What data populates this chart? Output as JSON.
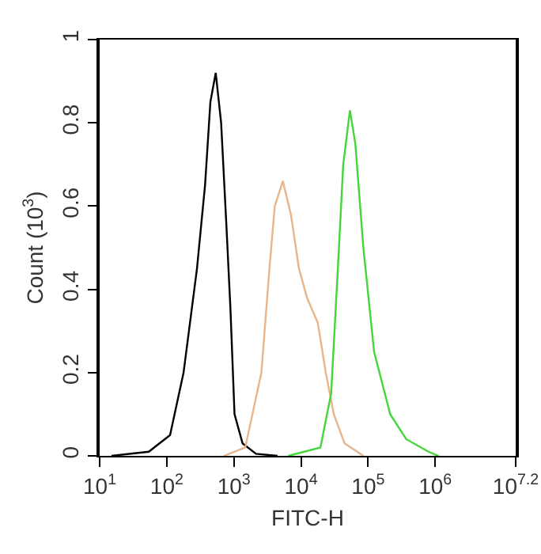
{
  "chart_data": {
    "type": "line",
    "xlabel": "FITC-H",
    "ylabel": "Count (10$^{3}$)",
    "log": "x",
    "grid": false,
    "marker": "none",
    "line_style": "solid",
    "xlim": [
      10,
      15848932
    ],
    "xticks": [
      {
        "value": 10,
        "label": "10$^{1}$"
      },
      {
        "value": 100,
        "label": "10$^{2}$"
      },
      {
        "value": 1000,
        "label": "10$^{3}$"
      },
      {
        "value": 10000,
        "label": "10$^{4}$"
      },
      {
        "value": 100000,
        "label": "10$^{5}$"
      },
      {
        "value": 1000000,
        "label": "10$^{6}$"
      },
      {
        "value": 15848932,
        "label": "10$^{7.2}$"
      }
    ],
    "ylim": [
      0,
      1
    ],
    "yticks": [
      0,
      0.2,
      0.4,
      0.6,
      0.8,
      1
    ],
    "series": [
      {
        "color": "#000000",
        "x": [
          15,
          54,
          112,
          178,
          282,
          372,
          447,
          537,
          646,
          776,
          891,
          1023,
          1349,
          2138,
          4467
        ],
        "values": [
          0,
          0.01,
          0.05,
          0.2,
          0.45,
          0.65,
          0.85,
          0.92,
          0.8,
          0.55,
          0.35,
          0.1,
          0.03,
          0.005,
          0
        ]
      },
      {
        "color": "#e8b58a",
        "x": [
          708,
          1479,
          2570,
          3388,
          4074,
          5370,
          7079,
          9333,
          12300,
          17780,
          23440,
          30900,
          44670,
          85110
        ],
        "values": [
          0,
          0.02,
          0.2,
          0.45,
          0.6,
          0.66,
          0.58,
          0.45,
          0.38,
          0.32,
          0.2,
          0.1,
          0.03,
          0
        ]
      },
      {
        "color": "#44d63a",
        "x": [
          6457,
          19500,
          28180,
          35480,
          42660,
          53700,
          64570,
          85110,
          123000,
          213800,
          371500,
          794300,
          1122000
        ],
        "values": [
          0,
          0.02,
          0.15,
          0.45,
          0.7,
          0.83,
          0.75,
          0.5,
          0.25,
          0.1,
          0.04,
          0.01,
          0
        ]
      }
    ]
  }
}
